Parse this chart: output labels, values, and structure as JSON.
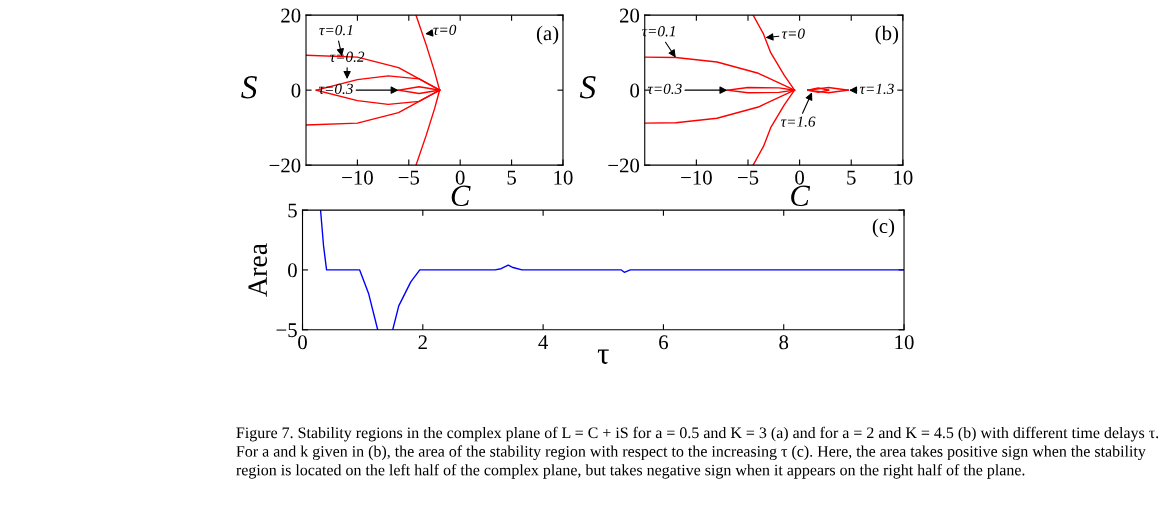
{
  "chart_data": [
    {
      "type": "line",
      "xlabel": "C",
      "ylabel": "S",
      "xlim": [
        -15,
        10
      ],
      "ylim": [
        -20,
        20
      ],
      "xticks": [
        -10,
        -5,
        0,
        5,
        10
      ],
      "yticks": [
        -20,
        0,
        20
      ],
      "grid": false,
      "legend": false,
      "series": [
        {
          "color": "#ff0000",
          "x": [
            -4.3,
            -3.3,
            -2.5,
            -2
          ],
          "values": [
            20,
            12,
            5,
            0
          ]
        },
        {
          "color": "#ff0000",
          "x": [
            -4.3,
            -3.3,
            -2.5,
            -2
          ],
          "values": [
            -20,
            -12,
            -5,
            0
          ]
        },
        {
          "color": "#ff0000",
          "x": [
            -15,
            -10,
            -6,
            -2
          ],
          "values": [
            9.3,
            8.8,
            6,
            0
          ]
        },
        {
          "color": "#ff0000",
          "x": [
            -15,
            -10,
            -6,
            -2
          ],
          "values": [
            -9.3,
            -8.8,
            -6,
            0
          ]
        },
        {
          "color": "#ff0000",
          "x": [
            -14,
            -10,
            -7,
            -4,
            -2
          ],
          "values": [
            0,
            2.8,
            3.8,
            3,
            0
          ]
        },
        {
          "color": "#ff0000",
          "x": [
            -14,
            -10,
            -7,
            -4,
            -2
          ],
          "values": [
            0,
            -2.8,
            -3.8,
            -3,
            0
          ]
        },
        {
          "color": "#ff0000",
          "x": [
            -6,
            -4,
            -2
          ],
          "values": [
            0,
            0.9,
            0
          ]
        },
        {
          "color": "#ff0000",
          "x": [
            -6,
            -4,
            -2
          ],
          "values": [
            0,
            -0.9,
            0
          ]
        }
      ],
      "annotations": [
        "(a)",
        {
          "text": "τ=0",
          "x": -3.4,
          "y": 15
        },
        {
          "text": "τ=0.1",
          "x": -11.5,
          "y": 9
        },
        {
          "text": "τ=0.2",
          "x": -11,
          "y": 3
        },
        {
          "text": "τ=0.3",
          "x": -6,
          "y": 0
        }
      ]
    },
    {
      "type": "line",
      "xlabel": "C",
      "ylabel": "S",
      "xlim": [
        -15,
        10
      ],
      "ylim": [
        -20,
        20
      ],
      "xticks": [
        -10,
        -5,
        0,
        5,
        10
      ],
      "yticks": [
        -20,
        0,
        20
      ],
      "grid": false,
      "legend": false,
      "series": [
        {
          "color": "#ff0000",
          "x": [
            -4.5,
            -3.5,
            -2.8,
            -1.5,
            -0.5
          ],
          "values": [
            20,
            15,
            10,
            4,
            0
          ]
        },
        {
          "color": "#ff0000",
          "x": [
            -4.5,
            -3.5,
            -2.8,
            -1.5,
            -0.5
          ],
          "values": [
            -20,
            -15,
            -10,
            -4,
            0
          ]
        },
        {
          "color": "#ff0000",
          "x": [
            -15,
            -12,
            -8,
            -4,
            -0.5
          ],
          "values": [
            8.8,
            8.7,
            7.5,
            4.5,
            0
          ]
        },
        {
          "color": "#ff0000",
          "x": [
            -15,
            -12,
            -8,
            -4,
            -0.5
          ],
          "values": [
            -8.8,
            -8.7,
            -7.5,
            -4.5,
            0
          ]
        },
        {
          "color": "#ff0000",
          "x": [
            -7,
            -5,
            -2,
            -0.5
          ],
          "values": [
            0,
            0.7,
            0.6,
            0
          ]
        },
        {
          "color": "#ff0000",
          "x": [
            -7,
            -5,
            -2,
            -0.5
          ],
          "values": [
            0,
            -0.7,
            -0.6,
            0
          ]
        },
        {
          "color": "#ff0000",
          "x": [
            0.8,
            2.8,
            4.7
          ],
          "values": [
            0,
            0.7,
            0
          ]
        },
        {
          "color": "#ff0000",
          "x": [
            0.8,
            2.8,
            4.7
          ],
          "values": [
            0,
            -0.7,
            0
          ]
        },
        {
          "color": "#ff0000",
          "x": [
            0.8,
            1.8,
            2.8
          ],
          "values": [
            0,
            0.6,
            0
          ]
        },
        {
          "color": "#ff0000",
          "x": [
            0.8,
            1.8,
            2.8
          ],
          "values": [
            0,
            -0.6,
            0
          ]
        }
      ],
      "annotations": [
        "(b)",
        {
          "text": "τ=0",
          "x": -3.3,
          "y": 14
        },
        {
          "text": "τ=0.1",
          "x": -12,
          "y": 8.7
        },
        {
          "text": "τ=0.3",
          "x": -7,
          "y": 0
        },
        {
          "text": "τ=1.3",
          "x": 4.8,
          "y": 0
        },
        {
          "text": "τ=1.6",
          "x": 1.2,
          "y": -0.6
        }
      ]
    },
    {
      "type": "line",
      "xlabel": "τ",
      "ylabel": "Area",
      "xlim": [
        0,
        10
      ],
      "ylim": [
        -5,
        5
      ],
      "xticks": [
        0,
        2,
        4,
        6,
        8,
        10
      ],
      "yticks": [
        -5,
        0,
        5
      ],
      "grid": false,
      "legend": false,
      "series": [
        {
          "color": "#0000ff",
          "x": [
            0.3,
            0.35,
            0.4,
            0.95,
            1.1,
            1.25,
            1.38,
            1.5,
            1.6,
            1.8,
            1.95,
            3.2,
            3.3,
            3.42,
            3.5,
            3.65,
            5.3,
            5.35,
            5.4,
            5.45,
            10
          ],
          "values": [
            5,
            2,
            0,
            0,
            -2,
            -5,
            null,
            -5,
            -3,
            -1,
            0,
            0,
            0.1,
            0.4,
            0.2,
            0,
            0,
            -0.2,
            -0.1,
            0,
            0
          ]
        }
      ],
      "annotations": [
        "(c)",
        "Figure 7. Stability regions in the complex plane of L = C + iS for a = 0.5 and K = 3 (a) and for a = 2 and K = 4.5 (b) with different time delays τ. For a and k given in (b), the area of the stability region with respect to the increasing τ (c). Here, the area takes positive sign when the stability region is located on the left half of the complex plane, but takes negative sign when it appears on the right half of the plane."
      ]
    }
  ]
}
